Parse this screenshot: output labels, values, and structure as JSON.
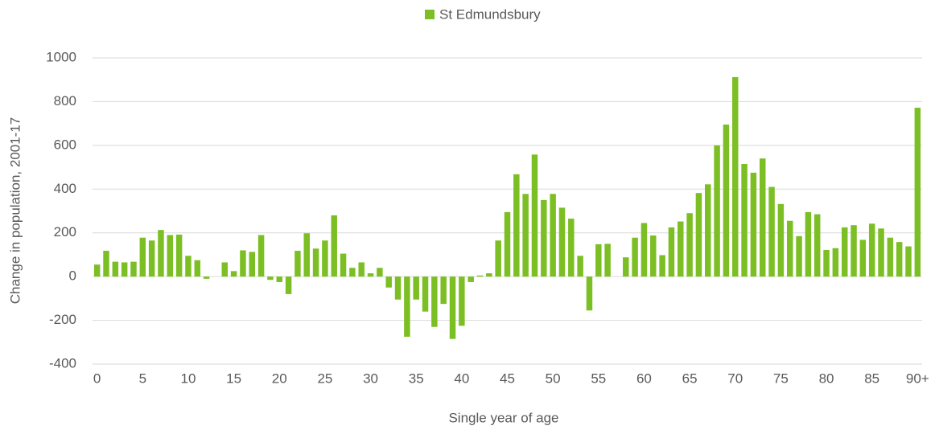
{
  "chart_data": {
    "type": "bar",
    "series": [
      {
        "name": "St Edmundsbury",
        "color": "#7cbf24",
        "values": [
          55,
          118,
          68,
          65,
          68,
          178,
          165,
          213,
          190,
          192,
          95,
          75,
          -10,
          0,
          65,
          25,
          120,
          113,
          190,
          -15,
          -25,
          -80,
          118,
          198,
          128,
          165,
          280,
          105,
          40,
          65,
          15,
          40,
          -50,
          -105,
          -275,
          -105,
          -160,
          -230,
          -125,
          -285,
          -225,
          -25,
          5,
          15,
          165,
          295,
          468,
          378,
          558,
          350,
          378,
          315,
          265,
          95,
          -155,
          148,
          150,
          0,
          88,
          178,
          245,
          188,
          98,
          225,
          252,
          290,
          382,
          422,
          600,
          695,
          912,
          515,
          475,
          540,
          410,
          332,
          255,
          185,
          295,
          285,
          122,
          130,
          225,
          235,
          168,
          242,
          220,
          178,
          158,
          138,
          772
        ]
      }
    ],
    "categories": [
      "0",
      null,
      null,
      null,
      null,
      "5",
      null,
      null,
      null,
      null,
      "10",
      null,
      null,
      null,
      null,
      "15",
      null,
      null,
      null,
      null,
      "20",
      null,
      null,
      null,
      null,
      "25",
      null,
      null,
      null,
      null,
      "30",
      null,
      null,
      null,
      null,
      "35",
      null,
      null,
      null,
      null,
      "40",
      null,
      null,
      null,
      null,
      "45",
      null,
      null,
      null,
      null,
      "50",
      null,
      null,
      null,
      null,
      "55",
      null,
      null,
      null,
      null,
      "60",
      null,
      null,
      null,
      null,
      "65",
      null,
      null,
      null,
      null,
      "70",
      null,
      null,
      null,
      null,
      "75",
      null,
      null,
      null,
      null,
      "80",
      null,
      null,
      null,
      null,
      "85",
      null,
      null,
      null,
      null,
      "90+"
    ],
    "x_label": "Single year of age",
    "y_label": "Change in population, 2001-17",
    "ylim": [
      -400,
      1000
    ],
    "yticks": [
      -400,
      -200,
      0,
      200,
      400,
      600,
      800,
      1000
    ],
    "grid": true,
    "legend": "top"
  }
}
